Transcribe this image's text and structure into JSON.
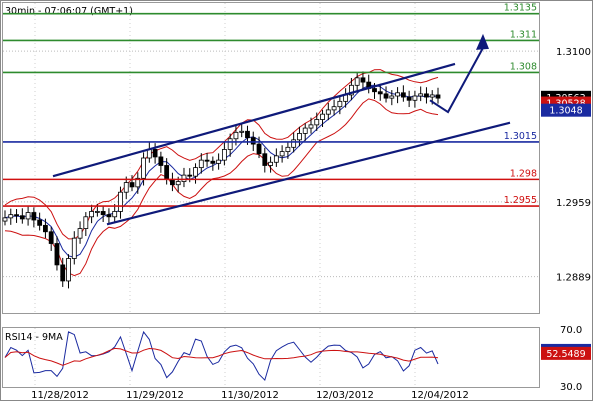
{
  "chart_data": {
    "type": "candlestick",
    "header": "30min - 07:06:07 (GMT+1)",
    "price_axis": {
      "range": [
        1.2855,
        1.3145
      ],
      "ticks": [
        {
          "value": 1.31,
          "label": "1.3100"
        },
        {
          "value": 1.2959,
          "label": "1.2959"
        },
        {
          "value": 1.2889,
          "label": "1.2889"
        }
      ]
    },
    "horizontal_levels": [
      {
        "value": 1.3135,
        "label": "1.3135",
        "color": "#2e8b2e"
      },
      {
        "value": 1.311,
        "label": "1.311",
        "color": "#2e8b2e"
      },
      {
        "value": 1.308,
        "label": "1.308",
        "color": "#2e8b2e"
      },
      {
        "value": 1.3015,
        "label": "1.3015",
        "color": "#1a2aa0"
      },
      {
        "value": 1.298,
        "label": "1.298",
        "color": "#d01010"
      },
      {
        "value": 1.2955,
        "label": "1.2955",
        "color": "#d01010"
      }
    ],
    "price_tags": [
      {
        "value": 1.30563,
        "label": "1.30563",
        "color": "#000000"
      },
      {
        "value": 1.30528,
        "label": "1.30528",
        "color": "#cc1111"
      },
      {
        "value": 1.3048,
        "label": "1.3048",
        "color": "#1a2aa0"
      }
    ],
    "x_labels": [
      "11/28/2012",
      "11/29/2012",
      "11/30/2012",
      "12/03/2012",
      "12/04/2012"
    ],
    "channel": {
      "upper": [
        [
          0,
          1.2983
        ],
        [
          86,
          1.3088
        ]
      ],
      "lower": [
        [
          19,
          1.2938
        ],
        [
          95,
          1.3033
        ]
      ]
    },
    "projection": [
      [
        86,
        1.3054
      ],
      [
        88,
        1.3043
      ],
      [
        92,
        1.3103
      ]
    ],
    "close_series": [
      1.2944,
      1.2947,
      1.2946,
      1.2943,
      1.2949,
      1.2942,
      1.2937,
      1.2931,
      1.292,
      1.29,
      1.2885,
      1.2906,
      1.2925,
      1.2934,
      1.2945,
      1.295,
      1.295,
      1.2947,
      1.2945,
      1.295,
      1.2968,
      1.2977,
      1.2973,
      1.2981,
      1.3,
      1.3008,
      1.3001,
      1.2993,
      1.298,
      1.2975,
      1.2978,
      1.2984,
      1.2983,
      1.2991,
      1.2998,
      1.2997,
      1.2995,
      1.2998,
      1.3008,
      1.3018,
      1.3024,
      1.3025,
      1.3019,
      1.3013,
      1.3004,
      1.2993,
      1.2996,
      1.3002,
      1.3006,
      1.301,
      1.3017,
      1.3023,
      1.3028,
      1.3031,
      1.3036,
      1.3041,
      1.3045,
      1.3048,
      1.3053,
      1.3059,
      1.3068,
      1.3075,
      1.3071,
      1.3065,
      1.3062,
      1.306,
      1.3056,
      1.3058,
      1.3061,
      1.3057,
      1.3054,
      1.3058,
      1.306,
      1.3057,
      1.3059,
      1.3056
    ],
    "rsi_panel": {
      "title": "RSI14 - 9MA",
      "range": [
        30,
        70
      ],
      "ticks": [
        {
          "value": 70,
          "label": "70.0"
        },
        {
          "value": 30,
          "label": "30.0"
        }
      ],
      "tags": [
        {
          "value": 54.6165,
          "label": "54.6165",
          "color": "#1a2aa0"
        },
        {
          "value": 52.5489,
          "label": "52.5489",
          "color": "#cc1111"
        }
      ]
    }
  }
}
